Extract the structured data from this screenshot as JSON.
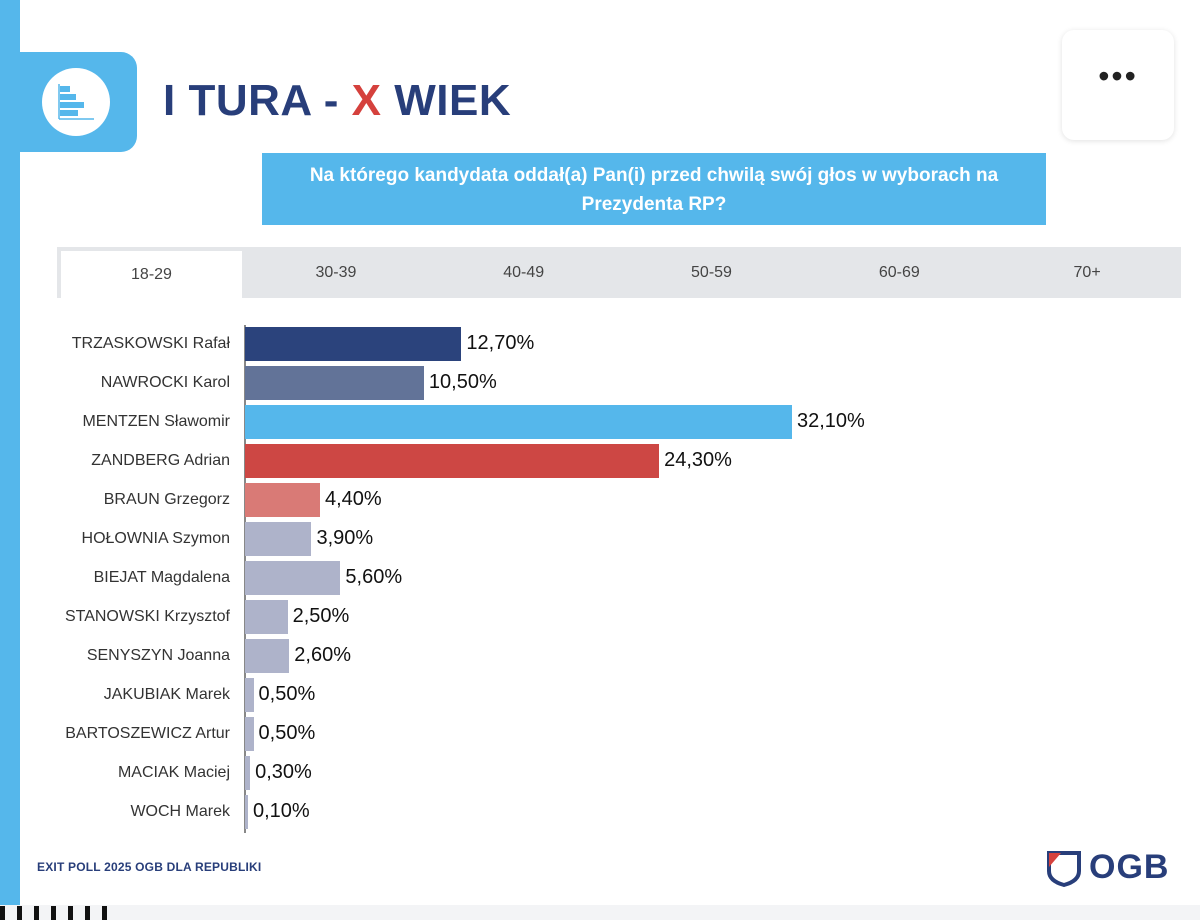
{
  "header": {
    "title_part1": "I TURA -",
    "title_part2": "X",
    "title_part3": "WIEK",
    "menu_label": "•••"
  },
  "question": "Na którego kandydata oddał(a) Pan(i) przed chwilą swój głos w wyborach na Prezydenta RP?",
  "tabs": [
    "18-29",
    "30-39",
    "40-49",
    "50-59",
    "60-69",
    "70+"
  ],
  "active_tab": "18-29",
  "footer": {
    "source": "EXIT POLL 2025 OGB DLA REPUBLIKI",
    "brand": "OGB"
  },
  "colors": {
    "accent_blue": "#55b7eb",
    "navy": "#283e7a",
    "red": "#d5413d"
  },
  "chart_data": {
    "type": "bar",
    "orientation": "horizontal",
    "title": "Na którego kandydata oddał(a) Pan(i) przed chwilą swój głos w wyborach na Prezydenta RP?",
    "group": "18-29",
    "categories": [
      "TRZASKOWSKI Rafał",
      "NAWROCKI Karol",
      "MENTZEN Sławomir",
      "ZANDBERG Adrian",
      "BRAUN Grzegorz",
      "HOŁOWNIA Szymon",
      "BIEJAT Magdalena",
      "STANOWSKI Krzysztof",
      "SENYSZYN Joanna",
      "JAKUBIAK Marek",
      "BARTOSZEWICZ Artur",
      "MACIAK Maciej",
      "WOCH Marek"
    ],
    "values": [
      12.7,
      10.5,
      32.1,
      24.3,
      4.4,
      3.9,
      5.6,
      2.5,
      2.6,
      0.5,
      0.5,
      0.3,
      0.1
    ],
    "value_labels": [
      "12,70%",
      "10,50%",
      "32,10%",
      "24,30%",
      "4,40%",
      "3,90%",
      "5,60%",
      "2,50%",
      "2,60%",
      "0,50%",
      "0,50%",
      "0,30%",
      "0,10%"
    ],
    "bar_colors": [
      "#2b437c",
      "#627398",
      "#55b7eb",
      "#cd4744",
      "#d97a76",
      "#aeb3ca",
      "#aeb3ca",
      "#aeb3ca",
      "#aeb3ca",
      "#aeb3ca",
      "#aeb3ca",
      "#aeb3ca",
      "#aeb3ca"
    ],
    "xlim": [
      0,
      33
    ]
  }
}
